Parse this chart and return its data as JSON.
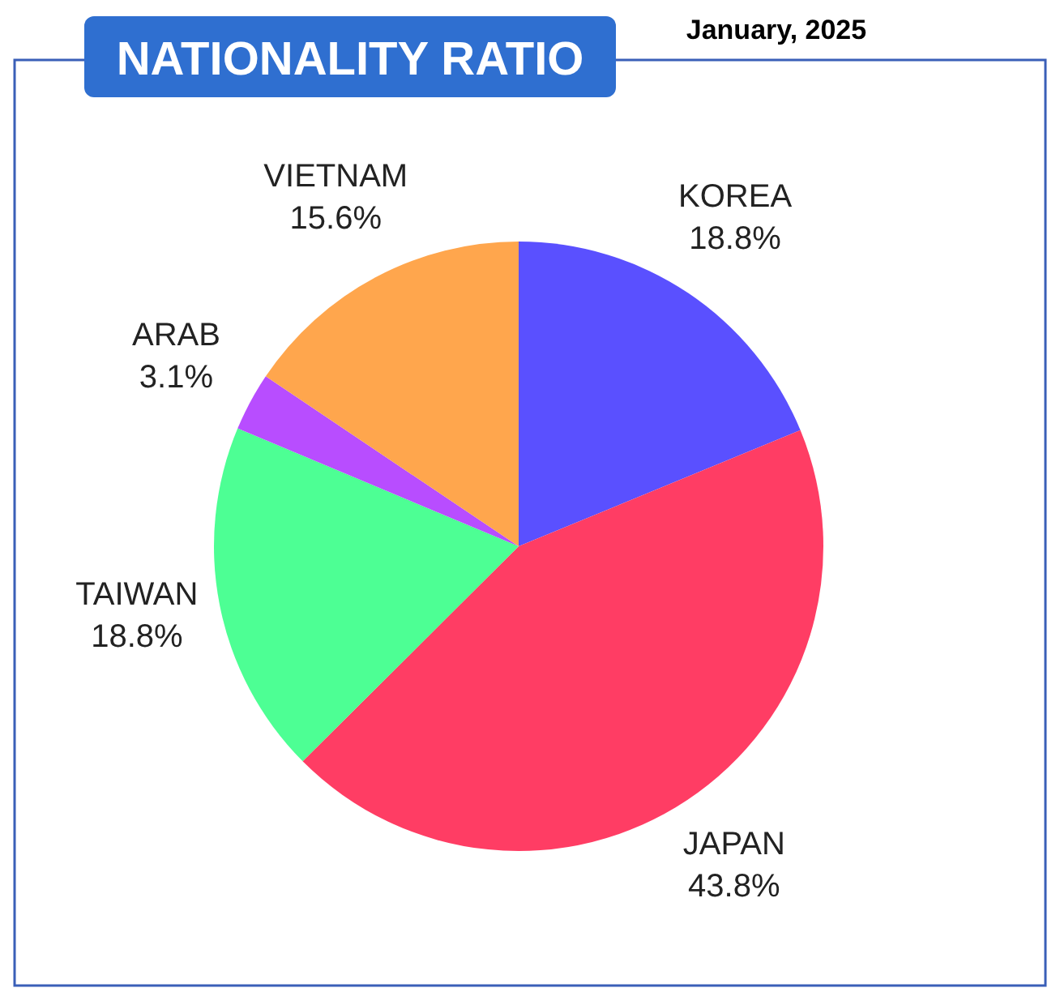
{
  "chart_data": {
    "type": "pie",
    "title": "NATIONALITY RATIO",
    "subtitle": "January, 2025",
    "categories": [
      "KOREA",
      "JAPAN",
      "TAIWAN",
      "ARAB",
      "VIETNAM"
    ],
    "values": [
      18.8,
      43.8,
      18.8,
      3.1,
      15.6
    ],
    "colors": [
      "#5a50ff",
      "#ff3d64",
      "#4dff94",
      "#b84dff",
      "#ffa64d"
    ],
    "value_labels": [
      "18.8%",
      "43.8%",
      "18.8%",
      "3.1%",
      "15.6%"
    ]
  }
}
